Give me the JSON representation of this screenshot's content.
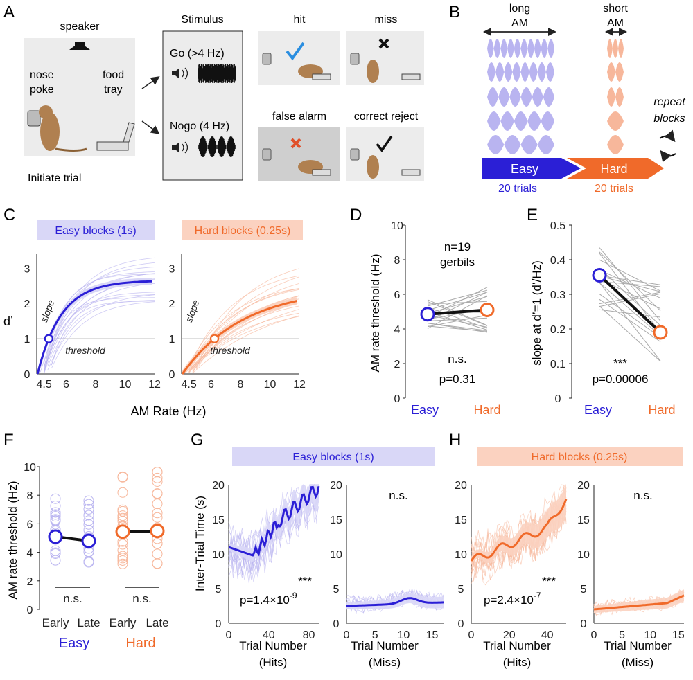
{
  "colors": {
    "easy": "#2b1fd6",
    "easy_light": "#b9b4f0",
    "easy_band": "#d9d7f7",
    "hard": "#f06a2a",
    "hard_light": "#f7b79b",
    "hard_band": "#fbd2c0",
    "gray": "#9a9a9a",
    "dark": "#222222"
  },
  "panel_letters": {
    "a": "A",
    "b": "B",
    "c": "C",
    "d": "D",
    "e": "E",
    "f": "F",
    "g": "G",
    "h": "H"
  },
  "panel_a": {
    "speaker": "speaker",
    "nose_poke_1": "nose",
    "nose_poke_2": "poke",
    "food_1": "food",
    "food_2": "tray",
    "initiate": "Initiate trial",
    "stimulus": "Stimulus",
    "go": "Go (>4 Hz)",
    "nogo": "Nogo (4 Hz)",
    "hit": "hit",
    "miss": "miss",
    "false_alarm": "false alarm",
    "correct_reject": "correct reject"
  },
  "panel_b": {
    "long_1": "long",
    "long_2": "AM",
    "short_1": "short",
    "short_2": "AM",
    "easy": "Easy",
    "hard": "Hard",
    "easy_trials": "20 trials",
    "hard_trials": "20 trials",
    "repeat_1": "repeat",
    "repeat_2": "blocks"
  },
  "panel_c": {
    "easy_title": "Easy blocks (1s)",
    "hard_title": "Hard blocks (0.25s)",
    "ylabel": "d’",
    "xlabel": "AM Rate (Hz)",
    "slope": "slope",
    "threshold": "threshold",
    "yticks": [
      "0",
      "1",
      "2",
      "3"
    ],
    "xticks": [
      "4.5",
      "6",
      "8",
      "10",
      "12"
    ]
  },
  "panel_d": {
    "ylabel": "AM rate threshold (Hz)",
    "n_1": "n=19",
    "n_2": "gerbils",
    "ns": "n.s.",
    "p": "p=0.31",
    "yticks": [
      "0",
      "2",
      "4",
      "6",
      "8",
      "10"
    ],
    "x_easy": "Easy",
    "x_hard": "Hard",
    "means": [
      4.85,
      5.1
    ]
  },
  "panel_e": {
    "ylabel": "slope at d’=1 (d’/Hz)",
    "stars": "***",
    "p": "p=0.00006",
    "yticks": [
      "0",
      "0.1",
      "0.2",
      "0.3",
      "0.4",
      "0.5"
    ],
    "x_easy": "Easy",
    "x_hard": "Hard",
    "means": [
      0.355,
      0.19
    ]
  },
  "panel_f": {
    "ylabel": "AM rate threshold (Hz)",
    "yticks": [
      "0",
      "2",
      "4",
      "6",
      "8",
      "10"
    ],
    "xticks": [
      "Early",
      "Late",
      "Early",
      "Late"
    ],
    "ns": "n.s.",
    "easy": "Easy",
    "hard": "Hard",
    "means": {
      "easy_early": 5.1,
      "easy_late": 4.8,
      "hard_early": 5.45,
      "hard_late": 5.5
    }
  },
  "panel_g": {
    "title": "Easy blocks (1s)",
    "ylabel": "Inter-Trial Time (s)",
    "stars": "***",
    "p_main": "p=1.4×10",
    "p_exp": "-9",
    "ns": "n.s.",
    "xlabel_hits_1": "Trial Number",
    "xlabel_hits_2": "(Hits)",
    "xlabel_miss_1": "Trial Number",
    "xlabel_miss_2": "(Miss)",
    "yticks": [
      "0",
      "5",
      "10",
      "15",
      "20"
    ],
    "xticks_hits": [
      "0",
      "40",
      "80"
    ],
    "xticks_miss": [
      "0",
      "5",
      "10",
      "15"
    ]
  },
  "panel_h": {
    "title": "Hard blocks (0.25s)",
    "stars": "***",
    "p_main": "p=2.4×10",
    "p_exp": "-7",
    "ns": "n.s.",
    "xlabel_hits_1": "Trial Number",
    "xlabel_hits_2": "(Hits)",
    "xlabel_miss_1": "Trial Number",
    "xlabel_miss_2": "(Miss)",
    "yticks": [
      "0",
      "5",
      "10",
      "15",
      "20"
    ],
    "xticks_hits": [
      "0",
      "20",
      "40"
    ],
    "xticks_miss": [
      "0",
      "5",
      "10",
      "15"
    ]
  }
}
